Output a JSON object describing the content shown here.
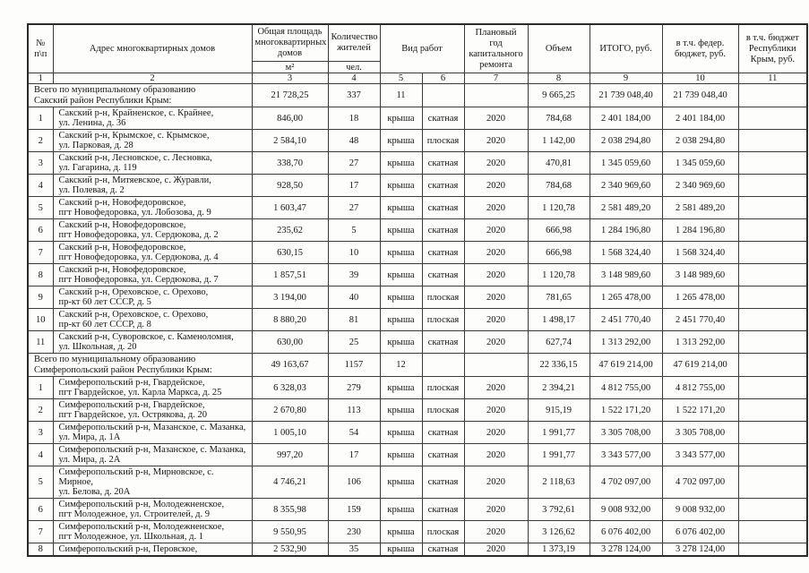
{
  "document": {
    "type": "scanned-capital-repair-program-table",
    "text_color": "#161616",
    "border_color": "#3a3a3a",
    "paper_color": "#fdfdfc"
  },
  "table": {
    "header": {
      "num": "№\nп\\п",
      "address": "Адрес многоквартирных домов",
      "area": "Общая площадь\nмногоквартирных\nдомов",
      "area_unit": "м²",
      "residents": "Количество\nжителей",
      "residents_unit": "чел.",
      "work": "Вид работ",
      "year": "Плановый\nгод\nкапитального\nремонта",
      "volume": "Объем",
      "total": "ИТОГО, руб.",
      "federal": "в т.ч. федер.\nбюджет, руб.",
      "republic": "в т.ч. бюджет\nРеспублики\nКрым, руб.",
      "numbers": [
        "1",
        "2",
        "3",
        "4",
        "5",
        "6",
        "7",
        "8",
        "9",
        "10",
        "11"
      ]
    },
    "groups": [
      {
        "summary": {
          "label_lines": [
            "Всего по муниципальному образованию",
            "Сакский район Республики Крым:"
          ],
          "area": "21 728,25",
          "residents": "337",
          "count": "11",
          "volume": "9 665,25",
          "total": "21 739 048,40",
          "federal": "21 739 048,40",
          "republic": ""
        },
        "rows": [
          {
            "num": "1",
            "address_lines": [
              "Сакский р-н, Крайненское, с. Крайнее,",
              "ул. Ленина, д. 36"
            ],
            "area": "846,00",
            "residents": "18",
            "work": "крыша",
            "roof": "скатная",
            "year": "2020",
            "volume": "784,68",
            "total": "2 401 184,00",
            "federal": "2 401 184,00",
            "republic": ""
          },
          {
            "num": "2",
            "address_lines": [
              "Сакский р-н, Крымское, с. Крымское,",
              "ул. Парковая, д. 28"
            ],
            "area": "2 584,10",
            "residents": "48",
            "work": "крыша",
            "roof": "плоская",
            "year": "2020",
            "volume": "1 142,00",
            "total": "2 038 294,80",
            "federal": "2 038 294,80",
            "republic": ""
          },
          {
            "num": "3",
            "address_lines": [
              "Сакский р-н, Лесновское, с. Лесновка,",
              "ул. Гагарина, д. 119"
            ],
            "area": "338,70",
            "residents": "27",
            "work": "крыша",
            "roof": "скатная",
            "year": "2020",
            "volume": "470,81",
            "total": "1 345 059,60",
            "federal": "1 345 059,60",
            "republic": ""
          },
          {
            "num": "4",
            "address_lines": [
              "Сакский р-н, Митяевское, с. Журавли,",
              "ул. Полевая, д. 2"
            ],
            "area": "928,50",
            "residents": "17",
            "work": "крыша",
            "roof": "скатная",
            "year": "2020",
            "volume": "784,68",
            "total": "2 340 969,60",
            "federal": "2 340 969,60",
            "republic": ""
          },
          {
            "num": "5",
            "address_lines": [
              "Сакский р-н, Новофедоровское,",
              "пгт Новофедоровка, ул. Лобозова, д. 9"
            ],
            "area": "1 603,47",
            "residents": "27",
            "work": "крыша",
            "roof": "скатная",
            "year": "2020",
            "volume": "1 120,78",
            "total": "2 581 489,20",
            "federal": "2 581 489,20",
            "republic": ""
          },
          {
            "num": "6",
            "address_lines": [
              "Сакский р-н, Новофедоровское,",
              "пгт Новофедоровка, ул. Сердюкова, д. 2"
            ],
            "area": "235,62",
            "residents": "5",
            "work": "крыша",
            "roof": "скатная",
            "year": "2020",
            "volume": "666,98",
            "total": "1 284 196,80",
            "federal": "1 284 196,80",
            "republic": ""
          },
          {
            "num": "7",
            "address_lines": [
              "Сакский р-н, Новофедоровское,",
              "пгт Новофедоровка, ул. Сердюкова, д. 4"
            ],
            "area": "630,15",
            "residents": "10",
            "work": "крыша",
            "roof": "скатная",
            "year": "2020",
            "volume": "666,98",
            "total": "1 568 324,40",
            "federal": "1 568 324,40",
            "republic": ""
          },
          {
            "num": "8",
            "address_lines": [
              "Сакский р-н, Новофедоровское,",
              "пгт Новофедоровка, ул. Сердюкова, д. 7"
            ],
            "area": "1 857,51",
            "residents": "39",
            "work": "крыша",
            "roof": "скатная",
            "year": "2020",
            "volume": "1 120,78",
            "total": "3 148 989,60",
            "federal": "3 148 989,60",
            "republic": ""
          },
          {
            "num": "9",
            "address_lines": [
              "Сакский р-н, Ореховское, с. Орехово,",
              "пр-кт 60 лет СССР, д. 5"
            ],
            "area": "3 194,00",
            "residents": "40",
            "work": "крыша",
            "roof": "плоская",
            "year": "2020",
            "volume": "781,65",
            "total": "1 265 478,00",
            "federal": "1 265 478,00",
            "republic": ""
          },
          {
            "num": "10",
            "address_lines": [
              "Сакский р-н, Ореховское, с. Орехово,",
              "пр-кт 60 лет СССР, д. 8"
            ],
            "area": "8 880,20",
            "residents": "81",
            "work": "крыша",
            "roof": "плоская",
            "year": "2020",
            "volume": "1 498,17",
            "total": "2 451 770,40",
            "federal": "2 451 770,40",
            "republic": ""
          },
          {
            "num": "11",
            "address_lines": [
              "Сакский р-н, Суворовское, с. Каменоломня,",
              "ул. Школьная, д. 20"
            ],
            "area": "630,00",
            "residents": "25",
            "work": "крыша",
            "roof": "скатная",
            "year": "2020",
            "volume": "627,74",
            "total": "1 313 292,00",
            "federal": "1 313 292,00",
            "republic": ""
          }
        ]
      },
      {
        "summary": {
          "label_lines": [
            "Всего по муниципальному образованию",
            "Симферопольский район Республики Крым:"
          ],
          "area": "49 163,67",
          "residents": "1157",
          "count": "12",
          "volume": "22 336,15",
          "total": "47 619 214,00",
          "federal": "47 619 214,00",
          "republic": ""
        },
        "rows": [
          {
            "num": "1",
            "address_lines": [
              "Симферопольский р-н, Гвардейское,",
              "пгт Гвардейское, ул. Карла Маркса, д. 25"
            ],
            "area": "6 328,03",
            "residents": "279",
            "work": "крыша",
            "roof": "плоская",
            "year": "2020",
            "volume": "2 394,21",
            "total": "4 812 755,00",
            "federal": "4 812 755,00",
            "republic": ""
          },
          {
            "num": "2",
            "address_lines": [
              "Симферопольский р-н, Гвардейское,",
              "пгт Гвардейское, ул. Острякова, д. 20"
            ],
            "area": "2 670,80",
            "residents": "113",
            "work": "крыша",
            "roof": "плоская",
            "year": "2020",
            "volume": "915,19",
            "total": "1 522 171,20",
            "federal": "1 522 171,20",
            "republic": ""
          },
          {
            "num": "3",
            "address_lines": [
              "Симферопольский р-н, Мазанское, с. Мазанка,",
              "ул. Мира, д. 1А"
            ],
            "area": "1 005,10",
            "residents": "54",
            "work": "крыша",
            "roof": "скатная",
            "year": "2020",
            "volume": "1 991,77",
            "total": "3 305 708,00",
            "federal": "3 305 708,00",
            "republic": ""
          },
          {
            "num": "4",
            "address_lines": [
              "Симферопольский р-н, Мазанское, с. Мазанка,",
              "ул. Мира, д. 2А"
            ],
            "area": "997,20",
            "residents": "17",
            "work": "крыша",
            "roof": "скатная",
            "year": "2020",
            "volume": "1 991,77",
            "total": "3 343 577,00",
            "federal": "3 343 577,00",
            "republic": ""
          },
          {
            "num": "5",
            "address_lines": [
              "Симферопольский р-н, Мирновское, с. Мирное,",
              "ул. Белова, д. 20А"
            ],
            "area": "4 746,21",
            "residents": "106",
            "work": "крыша",
            "roof": "скатная",
            "year": "2020",
            "volume": "2 118,63",
            "total": "4 702 097,00",
            "federal": "4 702 097,00",
            "republic": ""
          },
          {
            "num": "6",
            "address_lines": [
              "Симферопольский р-н, Молодежненское,",
              "пгт Молодежное, ул. Строителей, д. 9"
            ],
            "area": "8 355,98",
            "residents": "159",
            "work": "крыша",
            "roof": "скатная",
            "year": "2020",
            "volume": "3 792,61",
            "total": "9 008 932,00",
            "federal": "9 008 932,00",
            "republic": ""
          },
          {
            "num": "7",
            "address_lines": [
              "Симферопольский р-н, Молодежненское,",
              "пгт Молодежное, ул. Школьная, д. 1"
            ],
            "area": "9 550,95",
            "residents": "230",
            "work": "крыша",
            "roof": "плоская",
            "year": "2020",
            "volume": "3 126,62",
            "total": "6 076 402,00",
            "federal": "6 076 402,00",
            "republic": ""
          },
          {
            "num": "8",
            "address_lines": [
              "Симферопольский р-н, Перовское,"
            ],
            "area": "2 532,90",
            "residents": "35",
            "work": "крыша",
            "roof": "скатная",
            "year": "2020",
            "volume": "1 373,19",
            "total": "3 278 124,00",
            "federal": "3 278 124,00",
            "republic": ""
          }
        ]
      }
    ]
  }
}
